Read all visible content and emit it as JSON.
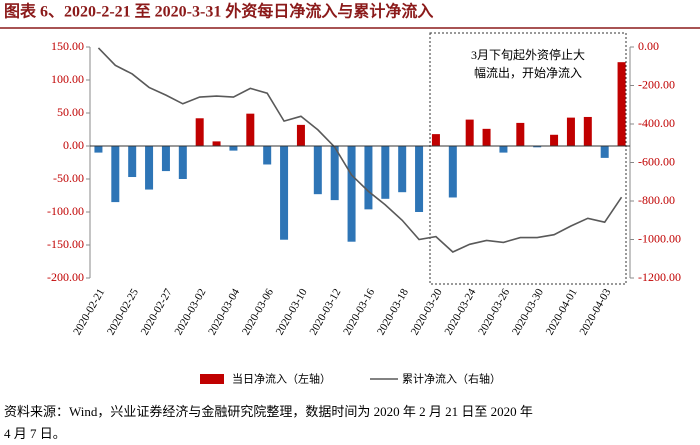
{
  "chart_data": {
    "type": "combo",
    "title": "图表 6、2020-2-21 至 2020-3-31 外资每日净流入与累计净流入",
    "categories": [
      "2020-02-21",
      null,
      "2020-02-25",
      null,
      "2020-02-27",
      null,
      "2020-03-02",
      null,
      "2020-03-04",
      null,
      "2020-03-06",
      null,
      "2020-03-10",
      null,
      "2020-03-12",
      null,
      "2020-03-16",
      null,
      "2020-03-18",
      null,
      "2020-03-20",
      null,
      "2020-03-24",
      null,
      "2020-03-26",
      null,
      "2020-03-30",
      null,
      "2020-04-01",
      null,
      "2020-04-03",
      null
    ],
    "series": [
      {
        "name": "当日净流入（左轴）",
        "type": "bar",
        "axis": "y",
        "color": "#c00000",
        "negative_color": "#2e75b6",
        "values": [
          -10,
          -85,
          -47,
          -66,
          -38,
          -50,
          42,
          7,
          -7,
          49,
          -28,
          -142,
          32,
          -73,
          -82,
          -145,
          -96,
          -80,
          -70,
          -100,
          18,
          -78,
          40,
          26,
          -10,
          35,
          -2,
          17,
          43,
          44,
          -18,
          127
        ]
      },
      {
        "name": "累计净流入（右轴）",
        "type": "line",
        "axis": "y2",
        "color": "#595959",
        "values": [
          -5,
          -95,
          -140,
          -210,
          -250,
          -295,
          -260,
          -255,
          -260,
          -215,
          -240,
          -385,
          -360,
          -430,
          -520,
          -665,
          -750,
          -820,
          -900,
          -1000,
          -985,
          -1065,
          -1025,
          -1005,
          -1015,
          -990,
          -990,
          -975,
          -930,
          -890,
          -910,
          -780
        ]
      }
    ],
    "ylim": [
      -200,
      150
    ],
    "yticks": [
      {
        "value": 150,
        "label": "150.00"
      },
      {
        "value": 100,
        "label": "100.00"
      },
      {
        "value": 50,
        "label": "50.00"
      },
      {
        "value": 0,
        "label": "0.00"
      },
      {
        "value": -50,
        "label": "-50.00"
      },
      {
        "value": -100,
        "label": "-100.00"
      },
      {
        "value": -150,
        "label": "-150.00"
      },
      {
        "value": -200,
        "label": "-200.00"
      }
    ],
    "y2lim": [
      -1200,
      0
    ],
    "y2ticks": [
      {
        "value": 0,
        "label": "0.00"
      },
      {
        "value": -200,
        "label": "-200.00"
      },
      {
        "value": -400,
        "label": "-400.00"
      },
      {
        "value": -600,
        "label": "-600.00"
      },
      {
        "value": -800,
        "label": "-800.00"
      },
      {
        "value": -1000,
        "label": "-1000.00"
      },
      {
        "value": -1200,
        "label": "-1200.00"
      }
    ],
    "annotation": [
      "3月下旬起外资停止大",
      "幅流出，开始净流入"
    ],
    "source": [
      "资料来源：Wind，兴业证券经济与金融研究院整理，数据时间为 2020 年 2 月 21 日至 2020 年",
      "4 月 7 日。"
    ]
  }
}
